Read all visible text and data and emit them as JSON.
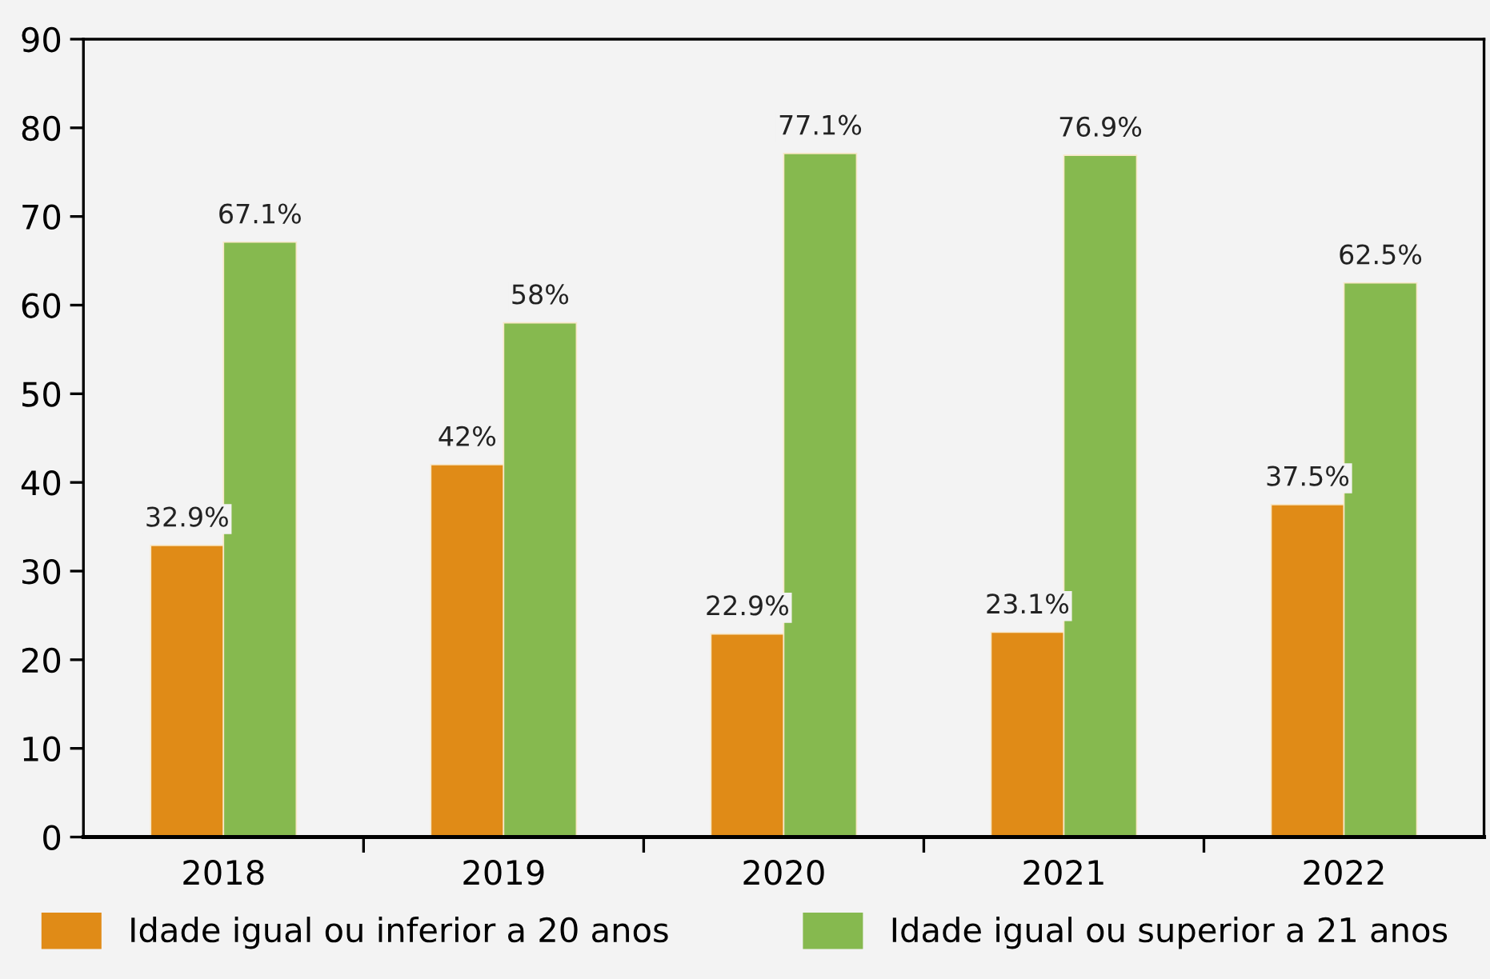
{
  "chart_data": {
    "type": "bar",
    "categories": [
      "2018",
      "2019",
      "2020",
      "2021",
      "2022"
    ],
    "series": [
      {
        "name": "Idade igual ou inferior a 20 anos",
        "color": "#e08b17",
        "values": [
          32.9,
          42,
          22.9,
          23.1,
          37.5
        ],
        "value_labels": [
          "32.9%",
          "42%",
          "22.9%",
          "23.1%",
          "37.5%"
        ]
      },
      {
        "name": "Idade igual ou superior a 21 anos",
        "color": "#86b94f",
        "values": [
          67.1,
          58,
          77.1,
          76.9,
          62.5
        ],
        "value_labels": [
          "67.1%",
          "58%",
          "77.1%",
          "76.9%",
          "62.5%"
        ]
      }
    ],
    "ylim": [
      0,
      90
    ],
    "yticks": [
      0,
      10,
      20,
      30,
      40,
      50,
      60,
      70,
      80,
      90
    ],
    "grid": false,
    "legend": "bottom"
  }
}
